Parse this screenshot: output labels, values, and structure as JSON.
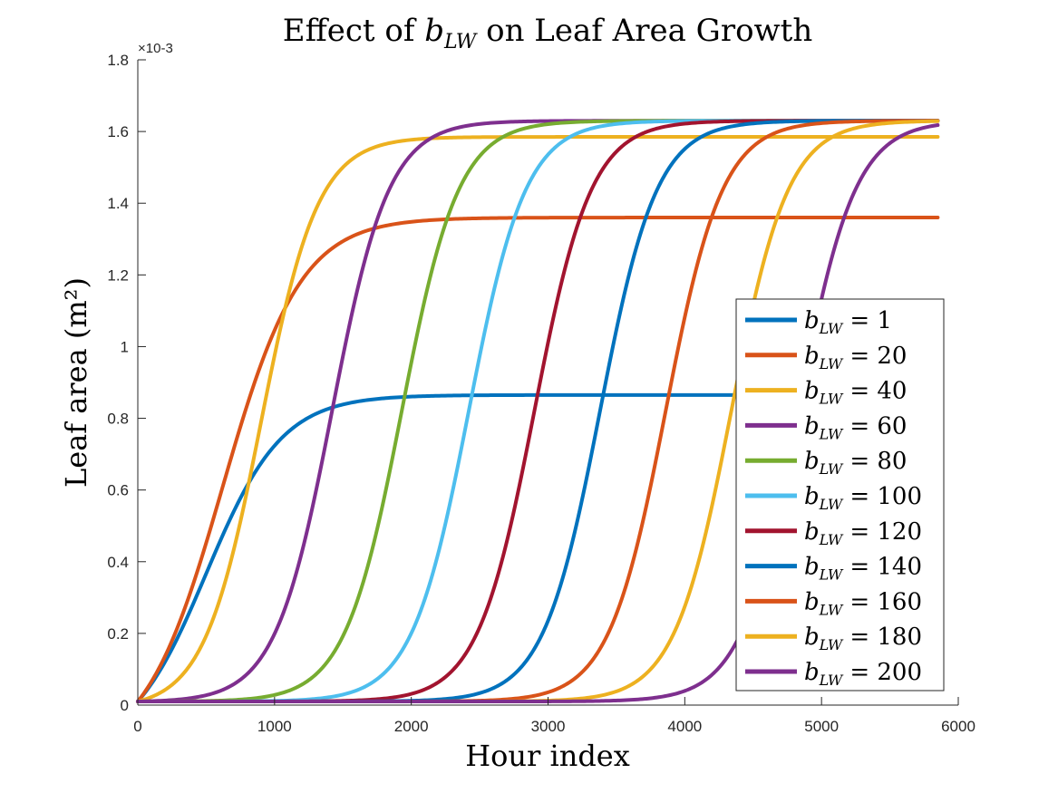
{
  "chart_data": {
    "type": "line",
    "title_prefix": "Effect of ",
    "title_symbol": "b",
    "title_subscript": "LW",
    "title_suffix": " on Leaf Area Growth",
    "xlabel": "Hour index",
    "ylabel": "Leaf area (m²)",
    "y_multiplier": "×10-3",
    "xlim": [
      0,
      6000
    ],
    "ylim": [
      0,
      1.8
    ],
    "x_ticks": [
      0,
      1000,
      2000,
      3000,
      4000,
      5000,
      6000
    ],
    "x_tick_labels": [
      "0",
      "1000",
      "2000",
      "3000",
      "4000",
      "5000",
      "6000"
    ],
    "y_ticks": [
      0,
      0.2,
      0.4,
      0.6,
      0.8,
      1.0,
      1.2,
      1.4,
      1.6,
      1.8
    ],
    "y_tick_labels": [
      "0",
      "0.2",
      "0.4",
      "0.6",
      "0.8",
      "1",
      "1.2",
      "1.4",
      "1.6",
      "1.8"
    ],
    "grid": false,
    "legend_position": "right",
    "legend_symbol": "b",
    "legend_subscript": "LW",
    "x_end": 5850,
    "series": [
      {
        "name": "1",
        "label": "= 1",
        "color": "#0072BD",
        "y0": 0.01,
        "L": 0.865,
        "k": 0.0036,
        "x0": 500
      },
      {
        "name": "20",
        "label": "= 20",
        "color": "#D95319",
        "y0": 0.01,
        "L": 1.36,
        "k": 0.0035,
        "x0": 620
      },
      {
        "name": "40",
        "label": "= 40",
        "color": "#EDB120",
        "y0": 0.01,
        "L": 1.585,
        "k": 0.0048,
        "x0": 900
      },
      {
        "name": "60",
        "label": "= 60",
        "color": "#7E2F8E",
        "y0": 0.01,
        "L": 1.63,
        "k": 0.0048,
        "x0": 1420
      },
      {
        "name": "80",
        "label": "= 80",
        "color": "#77AC30",
        "y0": 0.01,
        "L": 1.63,
        "k": 0.0048,
        "x0": 1930
      },
      {
        "name": "100",
        "label": "= 100",
        "color": "#4DBEEE",
        "y0": 0.01,
        "L": 1.63,
        "k": 0.0048,
        "x0": 2420
      },
      {
        "name": "120",
        "label": "= 120",
        "color": "#A2142F",
        "y0": 0.01,
        "L": 1.63,
        "k": 0.0048,
        "x0": 2900
      },
      {
        "name": "140",
        "label": "= 140",
        "color": "#0072BD",
        "y0": 0.01,
        "L": 1.63,
        "k": 0.0048,
        "x0": 3380
      },
      {
        "name": "160",
        "label": "= 160",
        "color": "#D95319",
        "y0": 0.01,
        "L": 1.63,
        "k": 0.0048,
        "x0": 3860
      },
      {
        "name": "180",
        "label": "= 180",
        "color": "#EDB120",
        "y0": 0.01,
        "L": 1.63,
        "k": 0.0048,
        "x0": 4340
      },
      {
        "name": "200",
        "label": "= 200",
        "color": "#7E2F8E",
        "y0": 0.01,
        "L": 1.63,
        "k": 0.0048,
        "x0": 4830
      }
    ]
  }
}
